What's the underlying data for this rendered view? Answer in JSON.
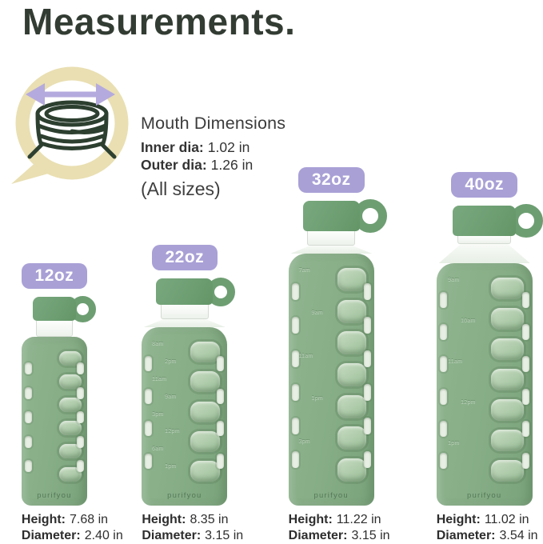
{
  "title": "Measurements.",
  "mouth": {
    "heading": "Mouth Dimensions",
    "inner_label": "Inner dia:",
    "inner_value": "1.02 in",
    "outer_label": "Outer dia:",
    "outer_value": "1.26 in",
    "note": "(All sizes)"
  },
  "labels": {
    "height": "Height:",
    "diameter": "Diameter:"
  },
  "brand": "purifyou",
  "colors": {
    "title": "#333c33",
    "text": "#3a3a3a",
    "badge": "#a9a0d6",
    "badge_text": "#ffffff",
    "cap": "#6d9e72",
    "sleeve": "#86ad86",
    "window_glass": "#aecbaa",
    "slot_glass": "#e7eee3",
    "icon_ring": "#e9dfb2",
    "icon_line": "#2d4030",
    "arrow": "#b5aadd"
  },
  "bottles": [
    {
      "size": "12oz",
      "height_label_value": "7.68 in",
      "diameter_label_value": "2.40 in",
      "height_num": 7.68,
      "diameter_num": 2.4,
      "rows": 6,
      "markings": []
    },
    {
      "size": "22oz",
      "height_label_value": "8.35 in",
      "diameter_label_value": "3.15 in",
      "height_num": 8.35,
      "diameter_num": 3.15,
      "rows": 5,
      "markings": [
        "8am",
        "2pm",
        "11am",
        "9am",
        "3pm",
        "12pm",
        "6am",
        "1pm"
      ]
    },
    {
      "size": "32oz",
      "height_label_value": "11.22 in",
      "diameter_label_value": "3.15 in",
      "height_num": 11.22,
      "diameter_num": 3.15,
      "rows": 7,
      "markings": [
        "7am",
        "9am",
        "11am",
        "1pm",
        "3pm"
      ]
    },
    {
      "size": "40oz",
      "height_label_value": "11.02 in",
      "diameter_label_value": "3.54 in",
      "height_num": 11.02,
      "diameter_num": 3.54,
      "rows": 7,
      "markings": [
        "9am",
        "10am",
        "11am",
        "12pm",
        "1pm"
      ]
    }
  ]
}
